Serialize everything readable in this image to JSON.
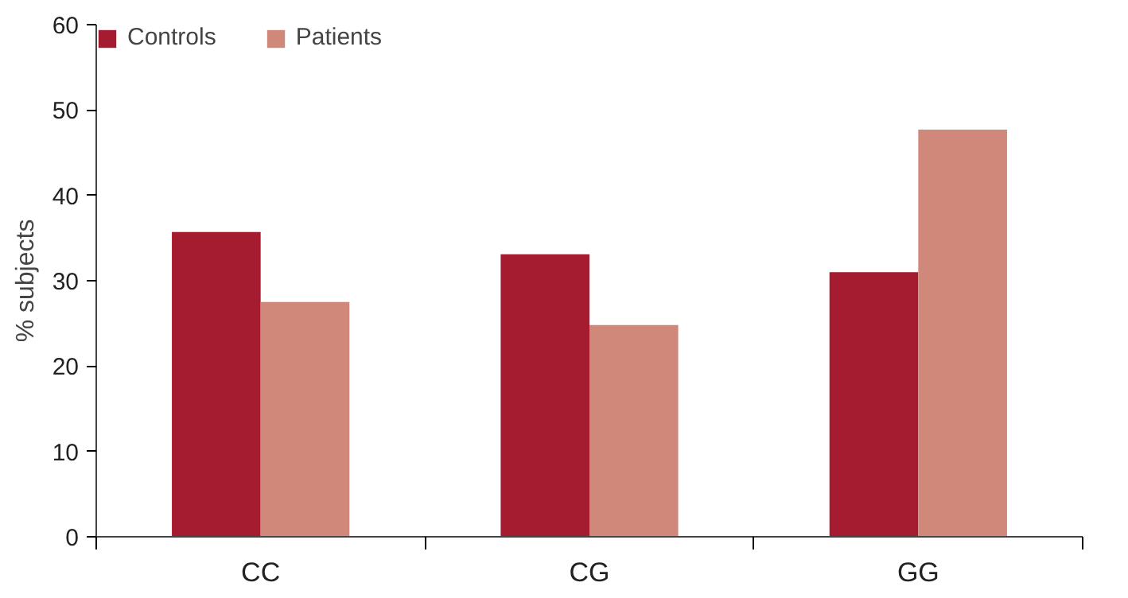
{
  "chart_data": {
    "type": "bar",
    "ylabel": "% subjects",
    "categories": [
      "CC",
      "CG",
      "GG"
    ],
    "series": [
      {
        "name": "Controls",
        "color": "#a51c30",
        "values": [
          35.7,
          33.1,
          31.0
        ]
      },
      {
        "name": "Patients",
        "color": "#d0887a",
        "values": [
          27.5,
          24.8,
          47.7
        ]
      }
    ],
    "ylim": [
      0,
      60
    ],
    "yticks": [
      0,
      10,
      20,
      30,
      40,
      50,
      60
    ],
    "grid": false,
    "legend": "top left"
  }
}
